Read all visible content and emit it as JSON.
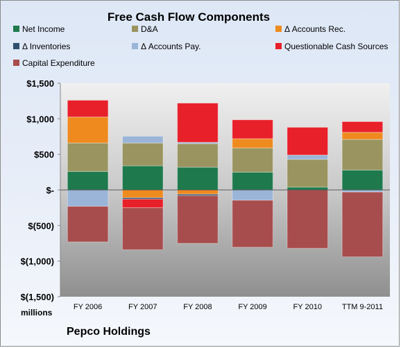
{
  "chart_data": {
    "type": "bar",
    "title": "Free Cash Flow Components",
    "ylabel": "millions",
    "categories": [
      "FY 2006",
      "FY 2007",
      "FY 2008",
      "FY 2009",
      "FY 2010",
      "TTM 9-2011"
    ],
    "ylim": [
      -1500,
      1500
    ],
    "yticks": [
      1500,
      1000,
      500,
      0,
      -500,
      -1000,
      -1500
    ],
    "ytick_labels": [
      "$1,500",
      "$1,000",
      "$500",
      "$-",
      "$(500)",
      "$(1,000)",
      "$(1,500)"
    ],
    "grid": false,
    "legend": "top",
    "series": [
      {
        "name": "Net Income",
        "color": "#1e7a4d",
        "values": [
          260,
          340,
          320,
          250,
          40,
          280
        ]
      },
      {
        "name": "D&A",
        "color": "#9a9460",
        "values": [
          400,
          320,
          330,
          340,
          390,
          430
        ]
      },
      {
        "name": "Δ Accounts Rec.",
        "color": "#ef8a1f",
        "values": [
          365,
          -110,
          -60,
          130,
          0,
          100
        ]
      },
      {
        "name": "Δ Inventories",
        "color": "#2f4f6f",
        "values": [
          0,
          -20,
          -20,
          0,
          0,
          0
        ]
      },
      {
        "name": "Δ Accounts Pay.",
        "color": "#9ab5d8",
        "values": [
          -230,
          95,
          20,
          -145,
          60,
          -30
        ]
      },
      {
        "name": "Questionable Cash Sources",
        "color": "#e8202a",
        "values": [
          235,
          -120,
          550,
          265,
          390,
          150
        ]
      },
      {
        "name": "Capital Expenditure",
        "color": "#a84d4d",
        "values": [
          -500,
          -590,
          -670,
          -660,
          -820,
          -910
        ]
      }
    ]
  },
  "footer": {
    "company": "Pepco Holdings"
  }
}
